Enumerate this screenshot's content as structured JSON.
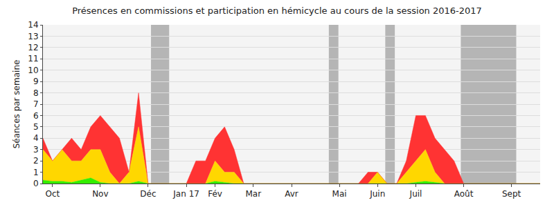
{
  "chart_data": {
    "type": "area",
    "stacked": true,
    "title": "Présences en commissions et participation en hémicycle au cours de la session 2016-2017",
    "y_label": "Séances par semaine",
    "categories": [
      null,
      "Oct",
      null,
      null,
      null,
      null,
      "Nov",
      null,
      null,
      null,
      null,
      "Déc",
      null,
      null,
      null,
      "Jan 17",
      null,
      null,
      "Fév",
      null,
      null,
      null,
      "Mar",
      null,
      null,
      null,
      "Avr",
      null,
      null,
      null,
      null,
      "Mai",
      null,
      null,
      null,
      "Juin",
      null,
      null,
      null,
      "Juil",
      null,
      null,
      null,
      null,
      "Août",
      null,
      null,
      null,
      null,
      "Sept",
      null,
      null,
      null
    ],
    "series": [
      {
        "color": "#33ee00",
        "values": [
          0.3,
          0.2,
          0.2,
          0.1,
          0.3,
          0.5,
          0.1,
          0,
          0,
          0,
          0.2,
          0,
          0,
          0,
          0,
          0,
          0,
          0,
          0.2,
          0.1,
          0,
          0,
          0,
          0,
          0,
          0,
          0,
          0,
          0,
          0,
          0,
          0,
          0,
          0,
          0,
          0,
          0,
          0,
          0,
          0.1,
          0.2,
          0.1,
          0,
          0,
          0,
          0,
          0,
          0,
          0,
          0,
          0,
          0,
          0
        ]
      },
      {
        "color": "#ffd700",
        "values": [
          2.7,
          1.8,
          2.8,
          1.9,
          1.7,
          2.5,
          2.9,
          1,
          0,
          1,
          4.8,
          0,
          0,
          0,
          0,
          0,
          0,
          0,
          1.8,
          0.9,
          1,
          0,
          0,
          0,
          0,
          0,
          0,
          0,
          0,
          0,
          0,
          0,
          0,
          0,
          0,
          1,
          0,
          0,
          1,
          1.9,
          2.8,
          0.9,
          0,
          0,
          0,
          0,
          0,
          0,
          0,
          0,
          0,
          0,
          0
        ]
      },
      {
        "color": "#ff3333",
        "values": [
          1,
          0,
          0,
          2,
          1,
          2,
          3,
          4,
          4,
          0,
          3,
          0,
          0,
          0,
          0,
          0,
          2,
          2,
          2,
          4,
          2,
          0,
          0,
          0,
          0,
          0,
          0,
          0,
          0,
          0,
          0,
          0,
          0,
          0,
          1,
          0,
          0,
          0,
          1,
          4,
          3,
          3,
          3,
          2,
          0,
          0,
          0,
          0,
          0,
          0,
          0,
          0,
          0
        ]
      }
    ],
    "shaded_ranges": [
      [
        11.3,
        13.2
      ],
      [
        29.9,
        30.9
      ],
      [
        35.8,
        36.8
      ],
      [
        43.7,
        49.5
      ]
    ],
    "ylim": [
      0,
      14
    ],
    "yticks": [
      0,
      1,
      2,
      3,
      4,
      5,
      6,
      7,
      8,
      9,
      10,
      11,
      12,
      13,
      14
    ],
    "grid": true
  }
}
